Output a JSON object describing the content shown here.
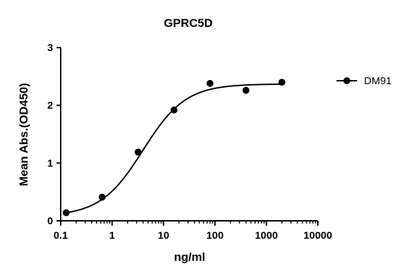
{
  "chart_data": {
    "type": "scatter",
    "title": "GPRC5D",
    "xlabel": "ng/ml",
    "ylabel": "Mean Abs.(OD450)",
    "x_scale": "log",
    "xlim": [
      0.1,
      10000
    ],
    "ylim": [
      0,
      3
    ],
    "x_ticks": [
      0.1,
      1,
      10,
      100,
      1000,
      10000
    ],
    "x_tick_labels": [
      "0.1",
      "1",
      "10",
      "100",
      "1000",
      "10000"
    ],
    "y_ticks": [
      0,
      1,
      2,
      3
    ],
    "y_tick_labels": [
      "0",
      "1",
      "2",
      "3"
    ],
    "grid": false,
    "legend_position": "right",
    "series": [
      {
        "name": "DM91",
        "color": "#000000",
        "marker": "circle",
        "fit": "sigmoidal",
        "x": [
          0.128,
          0.64,
          3.2,
          16,
          80,
          400,
          2000
        ],
        "y": [
          0.14,
          0.41,
          1.19,
          1.92,
          2.38,
          2.26,
          2.4
        ]
      }
    ]
  }
}
